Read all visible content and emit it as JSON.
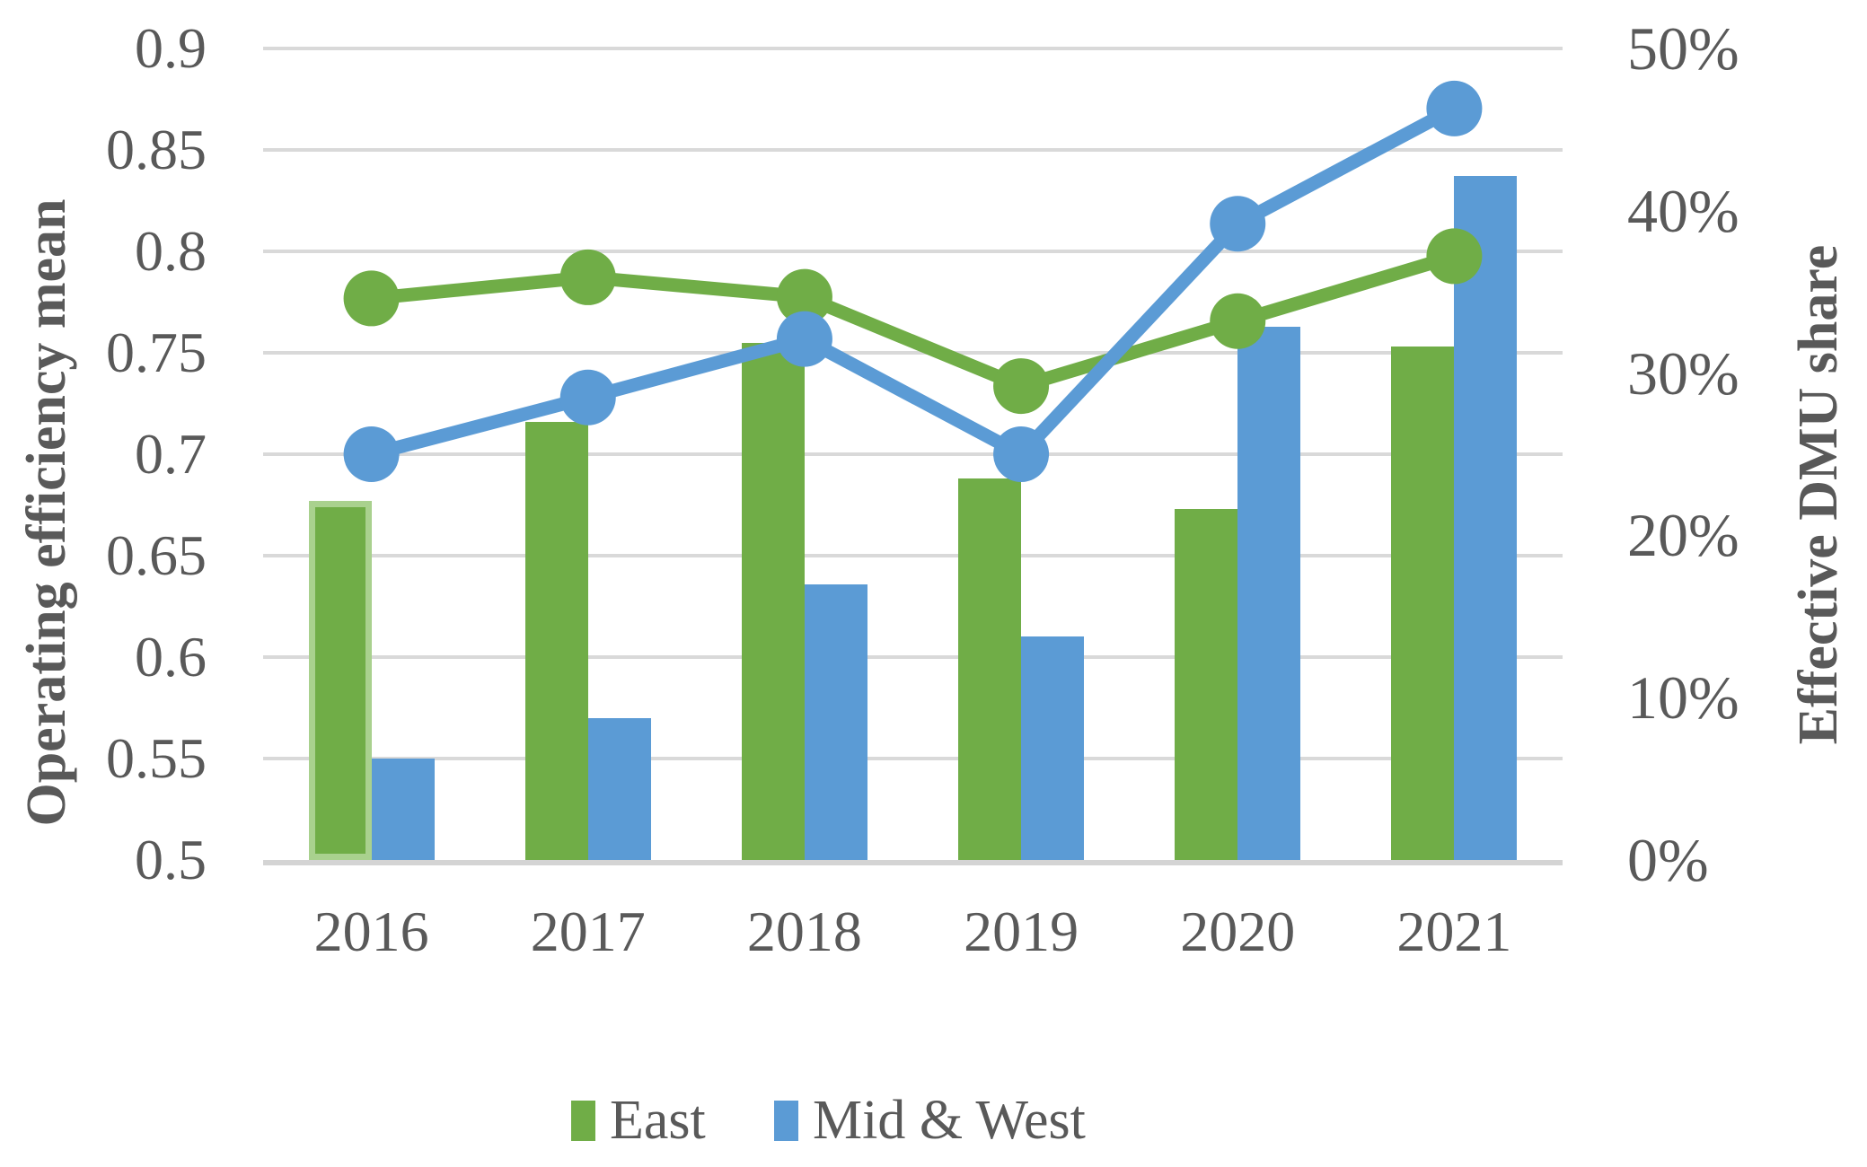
{
  "chart_data": {
    "type": "combo-bar-line",
    "title": "",
    "categories": [
      "2016",
      "2017",
      "2018",
      "2019",
      "2020",
      "2021"
    ],
    "bar_series": [
      {
        "name": "East",
        "axis": "left",
        "color": "#70AD47",
        "values": [
          0.677,
          0.716,
          0.755,
          0.688,
          0.673,
          0.753
        ],
        "first_point_outline_color": "#A9D18E"
      },
      {
        "name": "Mid & West",
        "axis": "left",
        "color": "#5B9BD5",
        "values": [
          0.55,
          0.57,
          0.636,
          0.61,
          0.763,
          0.837
        ]
      }
    ],
    "line_series": [
      {
        "name": "East",
        "axis": "right",
        "color": "#70AD47",
        "values_pct": [
          34.6,
          35.9,
          34.7,
          29.2,
          33.2,
          37.2
        ]
      },
      {
        "name": "Mid & West",
        "axis": "right",
        "color": "#5B9BD5",
        "values_pct": [
          25.0,
          28.5,
          32.1,
          25.0,
          39.2,
          46.3
        ]
      }
    ],
    "left_axis": {
      "title": "Operating efficiency mean",
      "min": 0.5,
      "max": 0.9,
      "step": 0.05,
      "tick_labels": [
        "0.9",
        "0.85",
        "0.8",
        "0.75",
        "0.7",
        "0.65",
        "0.6",
        "0.55",
        "0.5"
      ]
    },
    "right_axis": {
      "title": "Effective DMU share",
      "min_pct": 0,
      "max_pct": 50,
      "step_pct": 10,
      "tick_labels": [
        "50%",
        "40%",
        "30%",
        "20%",
        "10%",
        "0%"
      ]
    },
    "grid": true,
    "legend": {
      "position": "bottom",
      "items": [
        {
          "label": "East",
          "color": "#70AD47"
        },
        {
          "label": "Mid & West",
          "color": "#5B9BD5"
        }
      ]
    },
    "colors": {
      "text": "#595959",
      "gridline": "#D9D9D9",
      "baseline": "#D4D4D4",
      "background": "#FFFFFF"
    }
  }
}
